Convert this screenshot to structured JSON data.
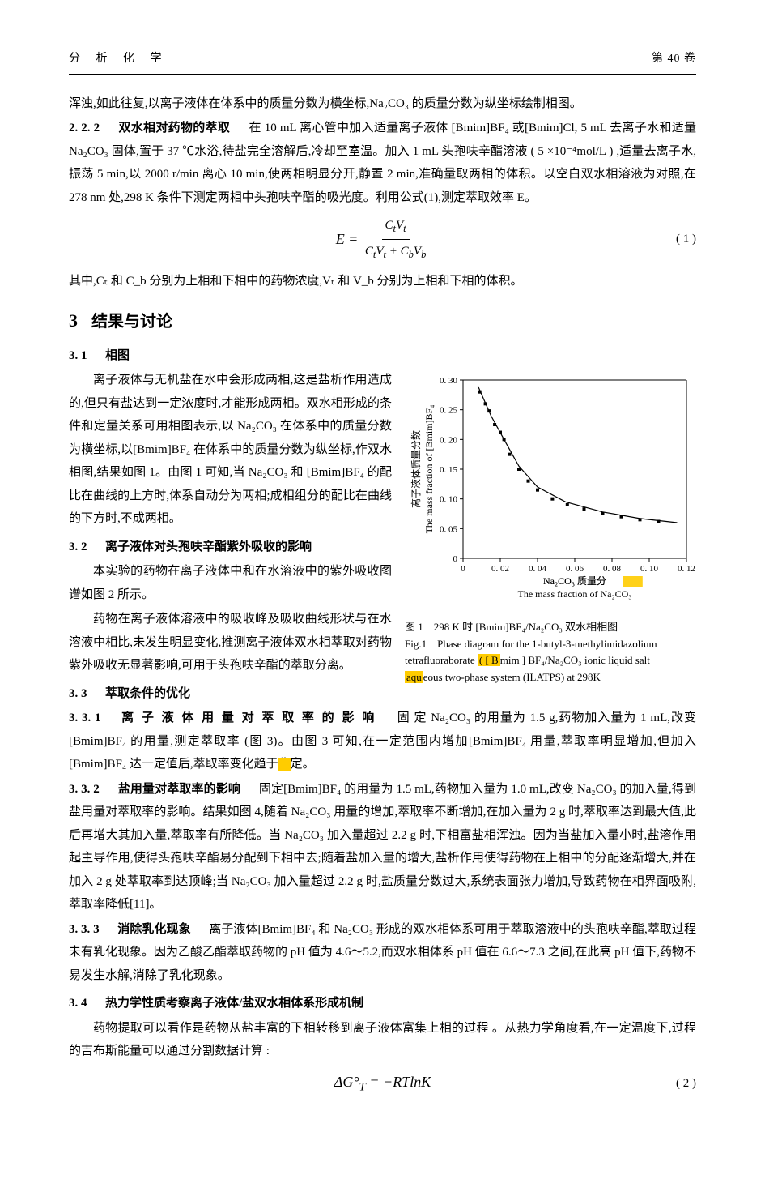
{
  "header": {
    "journal": "分 析 化 学",
    "volume": "第 40 卷"
  },
  "p_intro": "浑浊,如此往复,以离子液体在体系中的质量分数为横坐标,Na₂CO₃ 的质量分数为纵坐标绘制相图。",
  "s222_num": "2. 2. 2",
  "s222_title": "双水相对药物的萃取",
  "s222_body_a": "在 10 mL 离心管中加入适量离子液体 [Bmim]BF₄ 或[Bmim]Cl, 5 mL 去离子水和适量 Na₂CO₃ 固体,置于 37 ℃水浴,待盐完全溶解后,冷却至室温。加入 1 mL 头孢呋辛酯溶液 ( 5 ×10⁻⁴mol/L ) ,适量去离子水,振荡 5 min,以 2000 r/min 离心 10 min,使两相明显分开,静置 2 min,准确量取两相的体积。以空白双水相溶液为对照,在 278 nm 处,298 K 条件下测定两相中头孢呋辛酯的吸光度。利用公式(1),测定萃取效率 E。",
  "eq1_left": "E =",
  "eq1_num_html": "CₜVₜ",
  "eq1_den_html": "CₜVₜ + C_b V_b",
  "eq1_label": "( 1 )",
  "p_after_eq1": "其中,Cₜ 和 C_b 分别为上相和下相中的药物浓度,Vₜ 和 V_b 分别为上相和下相的体积。",
  "sec3_num": "3",
  "sec3_title": "结果与讨论",
  "s31_num": "3. 1",
  "s31_title": "相图",
  "s31_body": "离子液体与无机盐在水中会形成两相,这是盐析作用造成的,但只有盐达到一定浓度时,才能形成两相。双水相形成的条件和定量关系可用相图表示,以 Na₂CO₃ 在体系中的质量分数为横坐标,以[Bmim]BF₄ 在体系中的质量分数为纵坐标,作双水相图,结果如图 1。由图 1 可知,当 Na₂CO₃ 和 [Bmim]BF₄ 的配比在曲线的上方时,体系自动分为两相;成相组分的配比在曲线的下方时,不成两相。",
  "s32_num": "3. 2",
  "s32_title": "离子液体对头孢呋辛酯紫外吸收的影响",
  "s32_body1": "本实验的药物在离子液体中和在水溶液中的紫外吸收图谱如图 2 所示。",
  "s32_body2": "药物在离子液体溶液中的吸收峰及吸收曲线形状与在水溶液中相比,未发生明显变化,推测离子液体双水相萃取对药物紫外吸收无显著影响,可用于头孢呋辛酯的萃取分离。",
  "s33_num": "3. 3",
  "s33_title": "萃取条件的优化",
  "s331_num": "3. 3. 1",
  "s331_title": "离 子 液 体 用 量 对 萃 取 率 的 影 响",
  "s331_body": "固 定 Na₂CO₃ 的用量为 1.5 g,药物加入量为 1 mL,改变[Bmim]BF₄ 的用量,测定萃取率 (图 3)。由图 3 可知,在一定范围内增加[Bmim]BF₄ 用量,萃取率明显增加,但加入[Bmim]BF₄ 达一定值后,萃取率变化趋于稳定。",
  "s332_num": "3. 3. 2",
  "s332_title": "盐用量对萃取率的影响",
  "s332_body": "固定[Bmim]BF₄ 的用量为 1.5 mL,药物加入量为 1.0 mL,改变 Na₂CO₃ 的加入量,得到盐用量对萃取率的影响。结果如图 4,随着 Na₂CO₃ 用量的增加,萃取率不断增加,在加入量为 2 g 时,萃取率达到最大值,此后再增大其加入量,萃取率有所降低。当 Na₂CO₃ 加入量超过 2.2 g 时,下相富盐相浑浊。因为当盐加入量小时,盐溶作用起主导作用,使得头孢呋辛酯易分配到下相中去;随着盐加入量的增大,盐析作用使得药物在上相中的分配逐渐增大,并在加入 2 g 处萃取率到达顶峰;当 Na₂CO₃ 加入量超过 2.2 g 时,盐质量分数过大,系统表面张力增加,导致药物在相界面吸附,萃取率降低[11]。",
  "s333_num": "3. 3. 3",
  "s333_title": "消除乳化现象",
  "s333_body": "离子液体[Bmim]BF₄ 和 Na₂CO₃ 形成的双水相体系可用于萃取溶液中的头孢呋辛酯,萃取过程未有乳化现象。因为乙酸乙酯萃取药物的 pH 值为 4.6～5.2,而双水相体系 pH 值在 6.6～7.3 之间,在此高 pH 值下,药物不易发生水解,消除了乳化现象。",
  "s34_num": "3. 4",
  "s34_title": "热力学性质考察离子液体/盐双水相体系形成机制",
  "s34_body": "药物提取可以看作是药物从盐丰富的下相转移到离子液体富集上相的过程 。从热力学角度看,在一定温度下,过程的吉布斯能量可以通过分割数据计算 :",
  "eq2_text": "ΔG°_T = −RTlnK",
  "eq2_label": "( 2 )",
  "fig1": {
    "caption_cn": "图 1　298 K 时 [Bmim]BF₄/Na₂CO₃ 双水相相图",
    "caption_en_l1": "Fig.1　Phase diagram for the 1-butyl-3-methylimidazolium",
    "caption_en_l2a": "tetrafluoraborate ",
    "caption_en_l2_hl": "( [ B",
    "caption_en_l2b": "mim ] BF₄/Na₂CO₃ ionic liquid salt",
    "caption_en_l3_hl": "aqu",
    "caption_en_l3": "eous two-phase system (ILATPS) at 298K",
    "xlabel_cn": "Na₂CO₃ 质量分",
    "xlabel_en": "The mass fraction of Na₂CO₃",
    "ylabel_cn": "离子液体质量分数",
    "ylabel_en": "The mass fraction of [Bmim]BF₄",
    "xlim": [
      0,
      0.12
    ],
    "ylim": [
      0,
      0.3
    ],
    "xticks": [
      0,
      0.02,
      0.04,
      0.06,
      0.08,
      0.1,
      0.12
    ],
    "yticks": [
      0,
      0.05,
      0.1,
      0.15,
      0.2,
      0.25,
      0.3
    ],
    "xticklabels": [
      "0",
      "0. 02",
      "0. 04",
      "0. 06",
      "0. 08",
      "0. 10",
      "0. 12"
    ],
    "yticklabels": [
      "0",
      "0. 05",
      "0. 10",
      "0. 15",
      "0. 20",
      "0. 25",
      "0. 30"
    ],
    "points": [
      [
        0.009,
        0.28
      ],
      [
        0.012,
        0.26
      ],
      [
        0.014,
        0.248
      ],
      [
        0.017,
        0.225
      ],
      [
        0.02,
        0.212
      ],
      [
        0.022,
        0.2
      ],
      [
        0.025,
        0.175
      ],
      [
        0.03,
        0.15
      ],
      [
        0.035,
        0.13
      ],
      [
        0.04,
        0.115
      ],
      [
        0.048,
        0.1
      ],
      [
        0.056,
        0.09
      ],
      [
        0.065,
        0.083
      ],
      [
        0.075,
        0.075
      ],
      [
        0.085,
        0.07
      ],
      [
        0.095,
        0.065
      ],
      [
        0.105,
        0.062
      ]
    ],
    "curve": [
      [
        0.008,
        0.29
      ],
      [
        0.015,
        0.24
      ],
      [
        0.022,
        0.2
      ],
      [
        0.03,
        0.155
      ],
      [
        0.04,
        0.12
      ],
      [
        0.055,
        0.095
      ],
      [
        0.075,
        0.078
      ],
      [
        0.095,
        0.067
      ],
      [
        0.115,
        0.06
      ]
    ],
    "marker_color": "#000000",
    "marker_size": 4,
    "line_color": "#000000",
    "line_width": 1.2,
    "axis_color": "#000000",
    "tick_fontsize": 11,
    "label_fontsize": 12
  },
  "highlights": {
    "h1_style": "background:#ffcc00"
  }
}
